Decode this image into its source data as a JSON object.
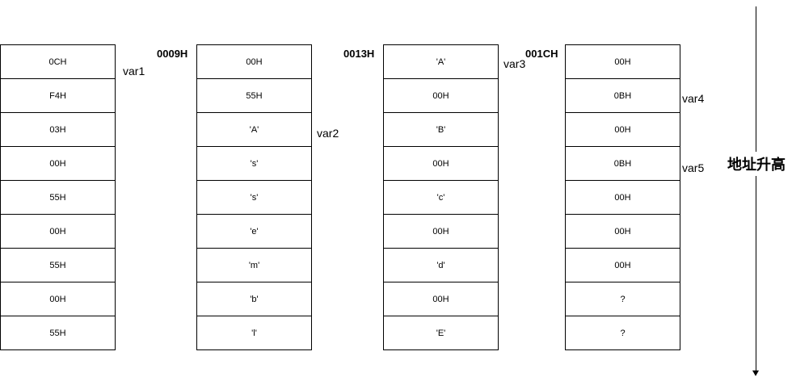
{
  "columns": [
    {
      "address": "",
      "cells": [
        "0CH",
        "F4H",
        "03H",
        "00H",
        "55H",
        "00H",
        "55H",
        "00H",
        "55H"
      ]
    },
    {
      "address": "0009H",
      "cells": [
        "00H",
        "55H",
        "'A'",
        "'s'",
        "'s'",
        "'e'",
        "'m'",
        "'b'",
        "'l'"
      ]
    },
    {
      "address": "0013H",
      "cells": [
        "'A'",
        "00H",
        "'B'",
        "00H",
        "'c'",
        "00H",
        "'d'",
        "00H",
        "'E'"
      ]
    },
    {
      "address": "001CH",
      "cells": [
        "00H",
        "0BH",
        "00H",
        "0BH",
        "00H",
        "00H",
        "00H",
        "?",
        "?"
      ]
    }
  ],
  "variables": {
    "var1": "var1",
    "var2": "var2",
    "var3": "var3",
    "var4": "var4",
    "var5": "var5"
  },
  "axis": {
    "label": "地址升高"
  }
}
